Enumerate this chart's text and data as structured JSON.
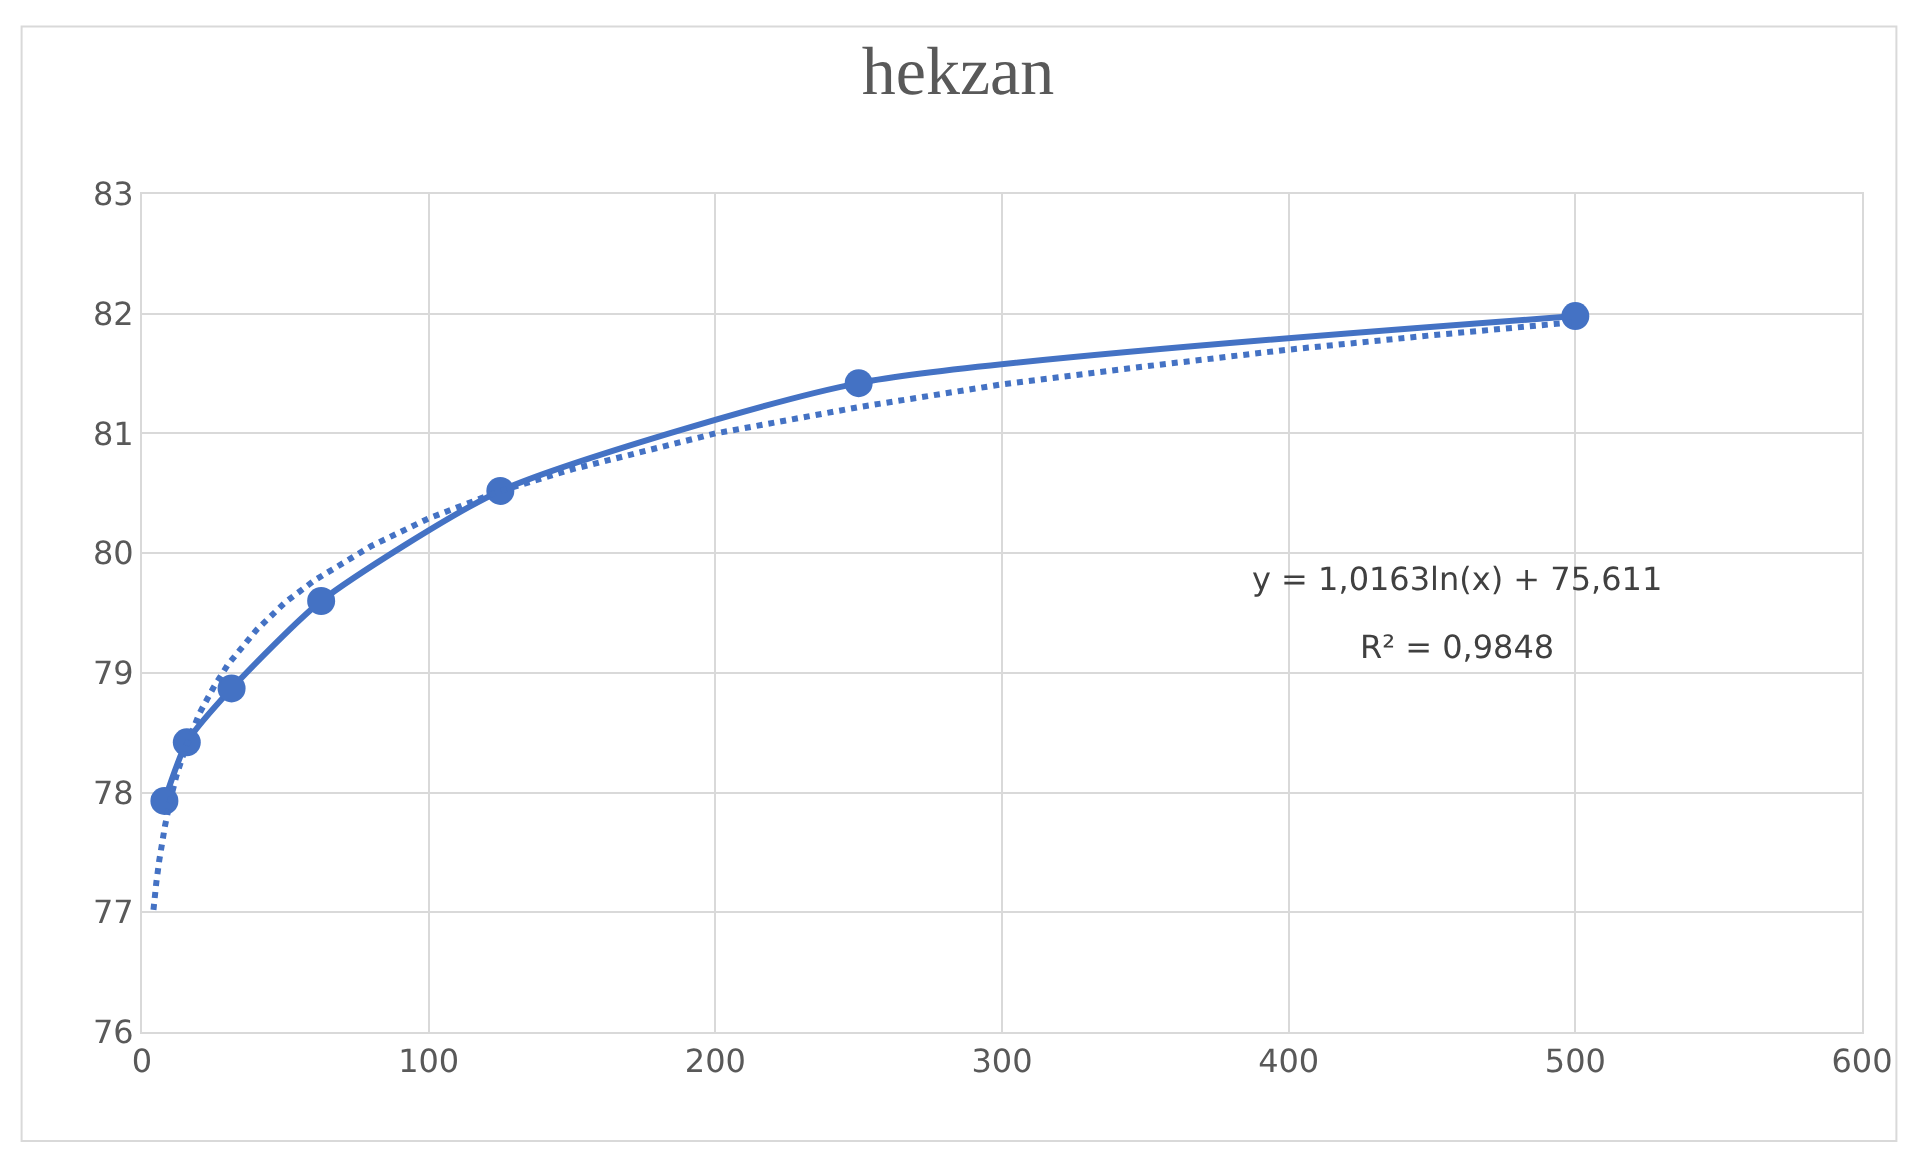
{
  "chart_data": {
    "type": "line",
    "title": "hekzan",
    "series": [
      {
        "color": "#4472c4",
        "marker": "circle",
        "line_style": "solid",
        "x": [
          7.8125,
          15.625,
          31.25,
          62.5,
          125,
          250,
          500
        ],
        "values": [
          77.93,
          78.42,
          78.87,
          79.6,
          80.52,
          81.42,
          81.98
        ]
      },
      {
        "color": "#4472c4",
        "marker": "none",
        "line_style": "dotted",
        "x": [
          4,
          5,
          6,
          8,
          10,
          12,
          15,
          20,
          25,
          30,
          40,
          50,
          60,
          80,
          100,
          125,
          150,
          200,
          250,
          300,
          350,
          400,
          450,
          500
        ],
        "values": [
          77.02,
          77.25,
          77.43,
          77.72,
          77.95,
          78.14,
          78.36,
          78.66,
          78.88,
          79.07,
          79.36,
          79.59,
          79.77,
          80.06,
          80.29,
          80.52,
          80.7,
          81.0,
          81.22,
          81.41,
          81.56,
          81.7,
          81.82,
          81.93
        ]
      }
    ],
    "xlim": [
      0,
      600
    ],
    "xticks": [
      0,
      100,
      200,
      300,
      400,
      500,
      600
    ],
    "ylim": [
      76,
      83
    ],
    "yticks": [
      76,
      77,
      78,
      79,
      80,
      81,
      82,
      83
    ],
    "grid": true,
    "annotations": [
      "y = 1,0163ln(x) + 75,611",
      "R² = 0,9848"
    ]
  }
}
